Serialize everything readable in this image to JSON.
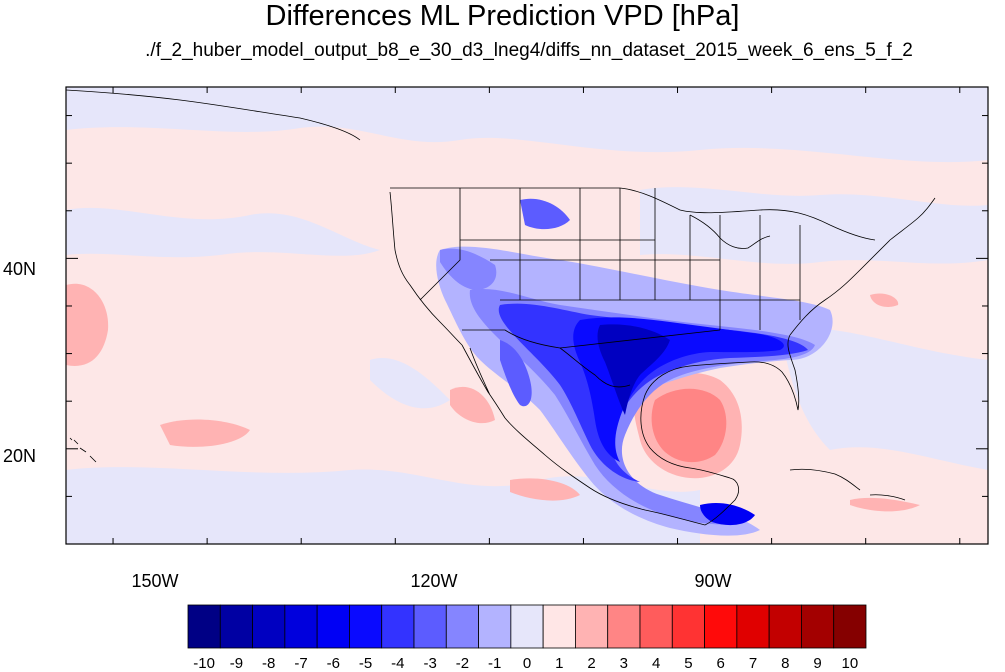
{
  "title": "Differences ML Prediction VPD [hPa]",
  "subtitle": "./f_2_huber_model_output_b8_e_30_d3_lneg4/diffs_nn_dataset_2015_week_6_ens_5_f_2",
  "map": {
    "lon_range": [
      -160,
      -62
    ],
    "lat_range": [
      10,
      58
    ],
    "lon_ticks": [
      {
        "value": -150,
        "label": "150W"
      },
      {
        "value": -120,
        "label": "120W"
      },
      {
        "value": -90,
        "label": "90W"
      }
    ],
    "lat_ticks": [
      {
        "value": 40,
        "label": "40N"
      },
      {
        "value": 20,
        "label": "20N"
      }
    ],
    "background_color": "#fde7e7"
  },
  "colorbar": {
    "labels": [
      "-10",
      "-9",
      "-8",
      "-7",
      "-6",
      "-5",
      "-4",
      "-3",
      "-2",
      "-1",
      "0",
      "1",
      "2",
      "3",
      "4",
      "5",
      "6",
      "7",
      "8",
      "9",
      "10"
    ],
    "colors": [
      "#000085",
      "#0000a3",
      "#0000c1",
      "#0000dd",
      "#0000f5",
      "#0a0aff",
      "#3333ff",
      "#5c5cff",
      "#8585ff",
      "#b3b3ff",
      "#e6e6fa",
      "#ffe6e6",
      "#ffb3b3",
      "#ff8585",
      "#ff5c5c",
      "#ff3333",
      "#ff0a0a",
      "#e00000",
      "#c20000",
      "#a30000",
      "#850000"
    ]
  }
}
